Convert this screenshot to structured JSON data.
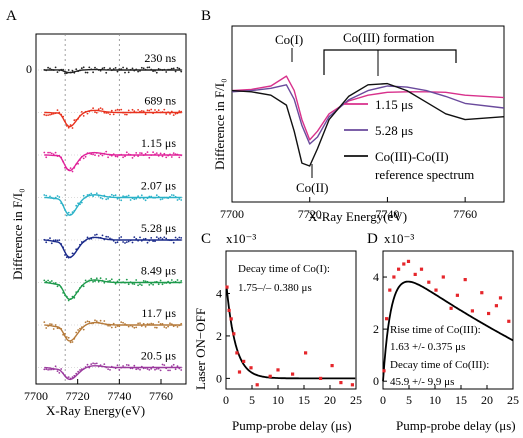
{
  "chart_data": [
    {
      "panel": "A",
      "type": "line",
      "xlabel": "X-Ray Energy(eV)",
      "ylabel": "Difference in F/I₀",
      "y_zero_tick": "0",
      "xlim": [
        7700,
        7772
      ],
      "xticks": [
        "7700",
        "7720",
        "7740",
        "7760"
      ],
      "reference_lines_x": [
        7714,
        7740
      ],
      "series": [
        {
          "name": "230 ns",
          "color": "#222222",
          "depth": 0.12,
          "width": 2.8
        },
        {
          "name": "689 ns",
          "color": "#e8331f",
          "depth": 0.65,
          "width": 3.2
        },
        {
          "name": "1.15 μs",
          "color": "#e0239a",
          "depth": 0.72,
          "width": 3.2
        },
        {
          "name": "2.07 μs",
          "color": "#2bb2c8",
          "depth": 0.82,
          "width": 3.4
        },
        {
          "name": "5.28 μs",
          "color": "#1a2a8a",
          "depth": 0.8,
          "width": 3.6
        },
        {
          "name": "8.49 μs",
          "color": "#1e9a4c",
          "depth": 0.78,
          "width": 3.6
        },
        {
          "name": "11.7 μs",
          "color": "#b57a3a",
          "depth": 0.74,
          "width": 3.6
        },
        {
          "name": "20.5 μs",
          "color": "#9b3a9e",
          "depth": 0.55,
          "width": 3.8
        }
      ]
    },
    {
      "panel": "B",
      "type": "line",
      "xlabel": "X-Ray Energy(eV)",
      "ylabel": "Difference in F/I₀",
      "xlim": [
        7700,
        7770
      ],
      "xticks": [
        "7700",
        "7720",
        "7740",
        "7760"
      ],
      "annotations": [
        "Co(I)",
        "Co(III) formation",
        "Co(II)"
      ],
      "series": [
        {
          "name": "1.15 μs",
          "color": "#d8318c",
          "x": [
            7700,
            7705,
            7710,
            7714,
            7716,
            7718,
            7720,
            7722,
            7725,
            7730,
            7735,
            7740,
            7745,
            7750,
            7755,
            7760,
            7770
          ],
          "y": [
            0.3,
            0.32,
            0.38,
            0.55,
            0.3,
            -0.2,
            -0.55,
            -0.4,
            -0.1,
            0.12,
            0.22,
            0.27,
            0.28,
            0.28,
            0.27,
            0.22,
            0.18
          ]
        },
        {
          "name": "5.28 μs",
          "color": "#6a4a9c",
          "x": [
            7700,
            7705,
            7710,
            7714,
            7716,
            7718,
            7720,
            7722,
            7725,
            7730,
            7735,
            7740,
            7745,
            7750,
            7755,
            7760,
            7770
          ],
          "y": [
            0.28,
            0.3,
            0.34,
            0.4,
            0.15,
            -0.3,
            -0.62,
            -0.5,
            -0.15,
            0.14,
            0.3,
            0.38,
            0.36,
            0.3,
            0.2,
            0.08,
            0.0
          ]
        },
        {
          "name": "Co(III)-Co(II) reference spectrum",
          "color": "#111111",
          "x": [
            7700,
            7705,
            7710,
            7714,
            7716,
            7718,
            7720,
            7722,
            7725,
            7730,
            7735,
            7740,
            7745,
            7750,
            7755,
            7760,
            7770
          ],
          "y": [
            0.3,
            0.28,
            0.22,
            0.05,
            -0.4,
            -0.95,
            -1.0,
            -0.7,
            -0.2,
            0.2,
            0.4,
            0.42,
            0.3,
            0.1,
            -0.1,
            -0.2,
            -0.15
          ]
        }
      ]
    },
    {
      "panel": "C",
      "type": "scatter",
      "xlabel": "Pump-probe delay (μs)",
      "ylabel": "Laser ON−OFF",
      "scale_label": "x10⁻³",
      "annotation_title": "Decay time of Co(I):",
      "annotation_value": "1.75–/– 0.380 μs",
      "xlim": [
        0,
        25
      ],
      "ylim": [
        -0.5,
        6
      ],
      "xticks": [
        "0",
        "5",
        "10",
        "15",
        "20",
        "25"
      ],
      "yticks": [
        "0",
        "2",
        "4"
      ],
      "points_x": [
        0.2,
        0.6,
        1.0,
        1.5,
        2.1,
        2.6,
        3.4,
        4.8,
        6.0,
        8.5,
        10.0,
        12.8,
        15.3,
        18.2,
        20.4,
        22.1,
        24.3
      ],
      "points_y": [
        4.3,
        3.2,
        2.8,
        2.1,
        1.2,
        0.3,
        0.8,
        0.5,
        -0.3,
        0.1,
        0.4,
        0.2,
        1.2,
        0.0,
        0.6,
        -0.2,
        -0.3
      ],
      "fit_amplitude": 4.6,
      "fit_tau": 1.75
    },
    {
      "panel": "D",
      "type": "scatter",
      "xlabel": "Pump-probe delay (μs)",
      "scale_label": "x10⁻³",
      "annotation_rise_title": "Rise time of Co(III):",
      "annotation_rise_value": "1.63 +/- 0.375 μs",
      "annotation_decay_title": "Decay time of Co(III):",
      "annotation_decay_value": "45.9 +/- 9.9 μs",
      "xlim": [
        0,
        25
      ],
      "ylim": [
        -0.3,
        5
      ],
      "xticks": [
        "0",
        "5",
        "10",
        "15",
        "20",
        "25"
      ],
      "yticks": [
        "0",
        "2",
        "4"
      ],
      "points_x": [
        0.2,
        0.7,
        1.3,
        2.1,
        3.0,
        4.0,
        4.9,
        6.2,
        7.4,
        8.8,
        10.2,
        11.6,
        13.1,
        14.3,
        15.8,
        17.2,
        19.0,
        20.3,
        21.8,
        22.6,
        24.2
      ],
      "points_y": [
        0.4,
        2.4,
        3.5,
        4.0,
        4.3,
        4.5,
        4.6,
        4.1,
        4.3,
        3.8,
        3.5,
        4.0,
        2.8,
        3.3,
        3.9,
        2.7,
        3.4,
        2.6,
        2.9,
        3.2,
        2.3
      ],
      "fit_amplitude": 4.75,
      "fit_rise": 1.63,
      "fit_decay": 45.9
    }
  ]
}
